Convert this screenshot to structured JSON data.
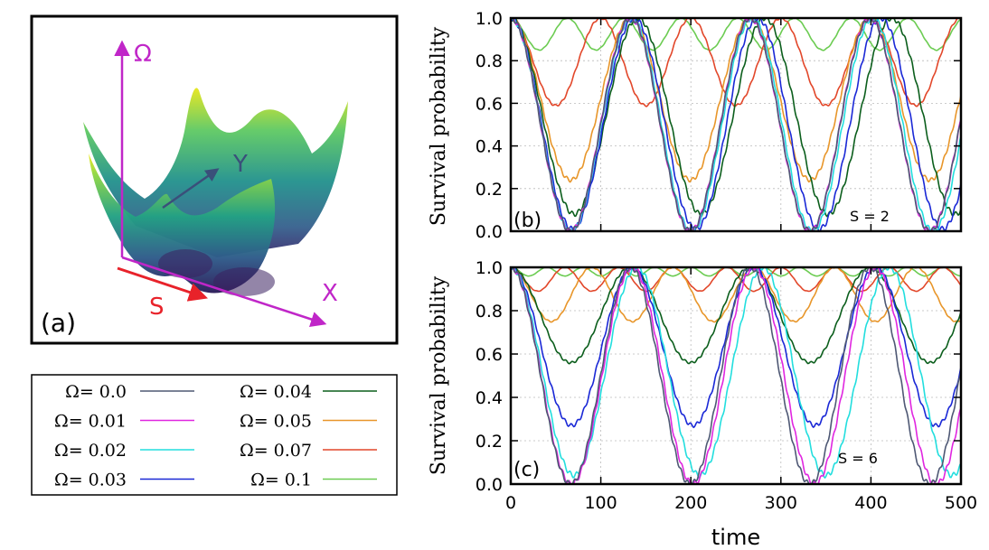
{
  "panel_a": {
    "tag": "(a)",
    "axis_omega": "Ω",
    "axis_x": "X",
    "axis_y": "Y",
    "axis_s": "S",
    "colors": {
      "axis": "#c026c8",
      "s_arrow": "#e8222a"
    }
  },
  "legend": {
    "entries": [
      {
        "label": "Ω= 0.0",
        "color": "#4e5874"
      },
      {
        "label": "Ω= 0.04",
        "color": "#0b5e1c"
      },
      {
        "label": "Ω= 0.01",
        "color": "#e026e0"
      },
      {
        "label": "Ω= 0.05",
        "color": "#e8962a"
      },
      {
        "label": "Ω= 0.02",
        "color": "#22dede"
      },
      {
        "label": "Ω= 0.07",
        "color": "#e2472a"
      },
      {
        "label": "Ω= 0.03",
        "color": "#1a28d6"
      },
      {
        "label": "Ω= 0.1",
        "color": "#6ccc52"
      }
    ]
  },
  "chart_data": [
    {
      "type": "line",
      "panel": "(b)",
      "annotation": "S = 2",
      "ylabel": "Survival probability",
      "xlabel": "",
      "xlim": [
        0,
        500
      ],
      "ylim": [
        0,
        1
      ],
      "yticks": [
        "0.0",
        "0.2",
        "0.4",
        "0.6",
        "0.8",
        "1.0"
      ],
      "grid": true,
      "series": [
        {
          "name": "Ω= 0.0",
          "color": "#4e5874",
          "min": 0.0,
          "period": 133
        },
        {
          "name": "Ω= 0.01",
          "color": "#e026e0",
          "min": 0.0,
          "period": 133
        },
        {
          "name": "Ω= 0.02",
          "color": "#22dede",
          "min": 0.0,
          "period": 134
        },
        {
          "name": "Ω= 0.03",
          "color": "#1a28d6",
          "min": 0.01,
          "period": 137
        },
        {
          "name": "Ω= 0.04",
          "color": "#0b5e1c",
          "min": 0.08,
          "period": 141
        },
        {
          "name": "Ω= 0.05",
          "color": "#e8962a",
          "min": 0.24,
          "period": 133
        },
        {
          "name": "Ω= 0.07",
          "color": "#e2472a",
          "min": 0.59,
          "period": 100
        },
        {
          "name": "Ω= 0.1",
          "color": "#6ccc52",
          "min": 0.85,
          "period": 63
        }
      ]
    },
    {
      "type": "line",
      "panel": "(c)",
      "annotation": "S = 6",
      "ylabel": "Survival probability",
      "xlabel": "time",
      "xlim": [
        0,
        500
      ],
      "ylim": [
        0,
        1
      ],
      "xticks": [
        "0",
        "100",
        "200",
        "300",
        "400",
        "500"
      ],
      "yticks": [
        "0.0",
        "0.2",
        "0.4",
        "0.6",
        "0.8",
        "1.0"
      ],
      "grid": true,
      "series": [
        {
          "name": "Ω= 0.0",
          "color": "#4e5874",
          "min": 0.0,
          "period": 133
        },
        {
          "name": "Ω= 0.01",
          "color": "#e026e0",
          "min": 0.0,
          "period": 135
        },
        {
          "name": "Ω= 0.02",
          "color": "#22dede",
          "min": 0.04,
          "period": 140
        },
        {
          "name": "Ω= 0.03",
          "color": "#1a28d6",
          "min": 0.27,
          "period": 135
        },
        {
          "name": "Ω= 0.04",
          "color": "#0b5e1c",
          "min": 0.56,
          "period": 133
        },
        {
          "name": "Ω= 0.05",
          "color": "#e8962a",
          "min": 0.75,
          "period": 90
        },
        {
          "name": "Ω= 0.07",
          "color": "#e2472a",
          "min": 0.89,
          "period": 60
        },
        {
          "name": "Ω= 0.1",
          "color": "#6ccc52",
          "min": 0.96,
          "period": 40
        }
      ]
    }
  ]
}
